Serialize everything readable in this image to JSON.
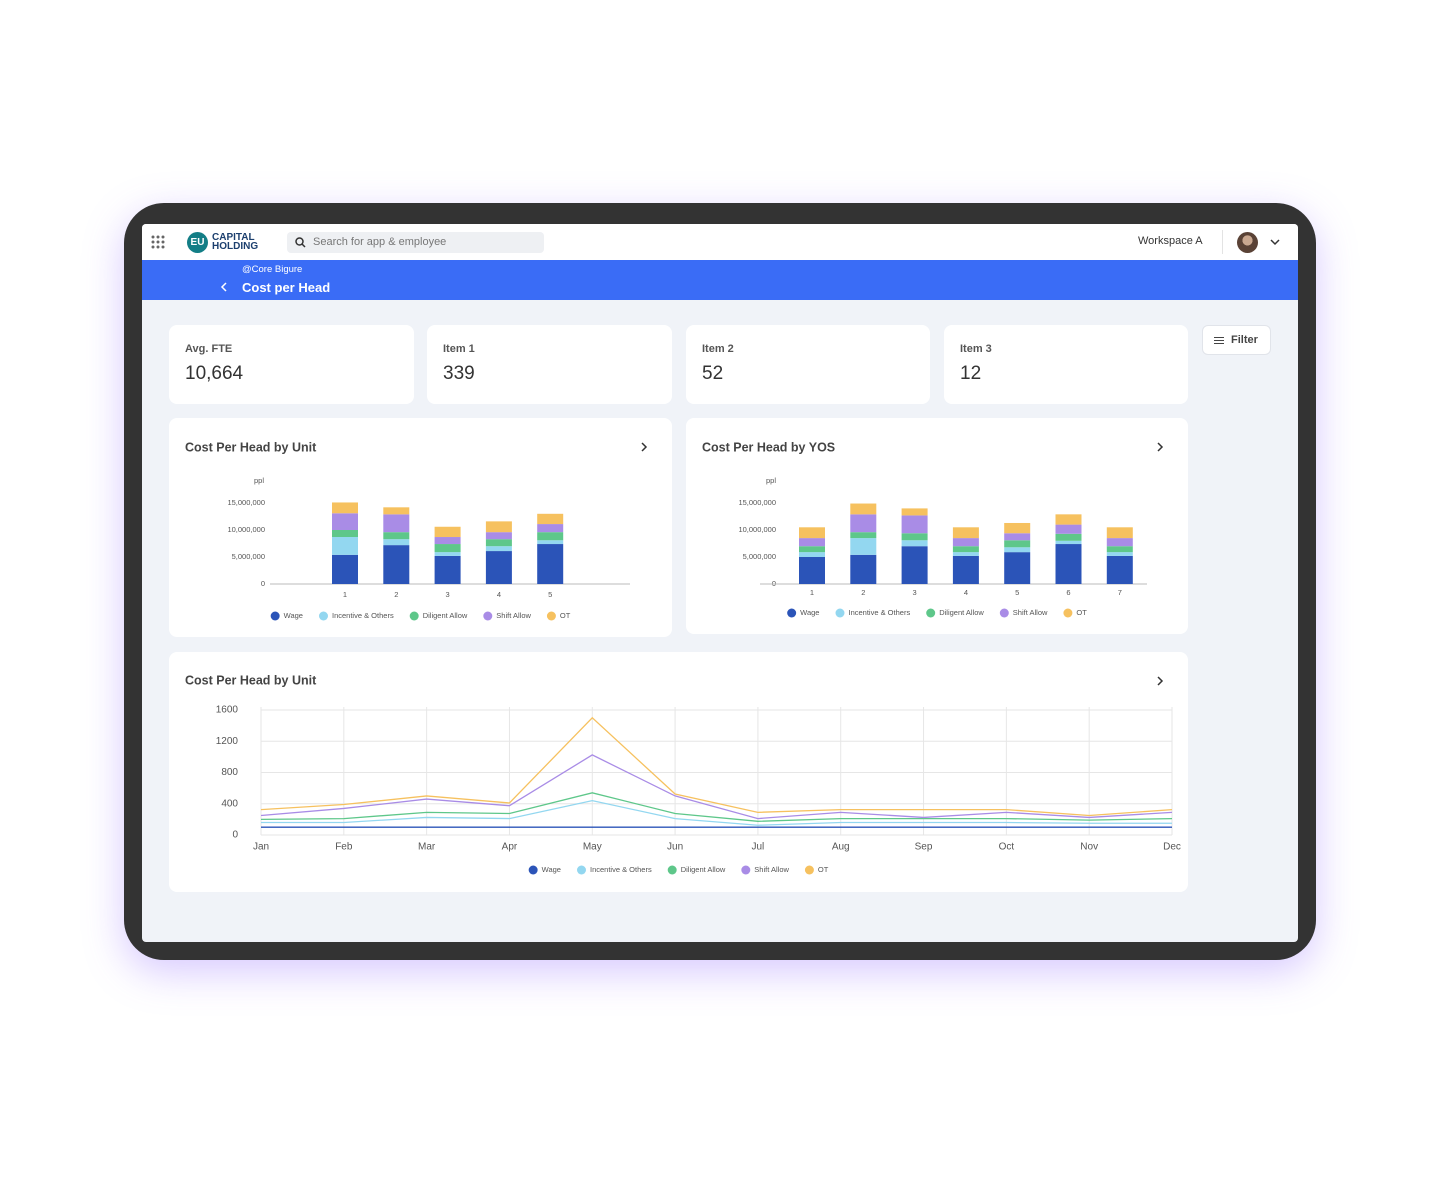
{
  "header": {
    "logo_badge": "EU",
    "logo_line1": "CAPITAL",
    "logo_line2": "HOLDING",
    "search_placeholder": "Search for app & employee",
    "workspace": "Workspace A"
  },
  "breadcrumb": {
    "parent": "@Core Bigure",
    "title": "Cost per Head"
  },
  "filter_button": "Filter",
  "kpis": [
    {
      "label": "Avg. FTE",
      "value": "10,664"
    },
    {
      "label": "Item 1",
      "value": "339"
    },
    {
      "label": "Item 2",
      "value": "52"
    },
    {
      "label": "Item 3",
      "value": "12"
    }
  ],
  "chart_data": [
    {
      "type": "bar",
      "stacked": true,
      "title": "Cost Per Head by Unit",
      "y_label": "ppl",
      "categories": [
        "1",
        "2",
        "3",
        "4",
        "5"
      ],
      "series": [
        {
          "name": "Wage",
          "color": "#2b54b8",
          "values": [
            5400000,
            7200000,
            5200000,
            6100000,
            7400000
          ]
        },
        {
          "name": "Incentive & Others",
          "color": "#93d7f0",
          "values": [
            3300000,
            1100000,
            700000,
            900000,
            700000
          ]
        },
        {
          "name": "Diligent Allow",
          "color": "#5ec78a",
          "values": [
            1300000,
            1300000,
            1500000,
            1300000,
            1500000
          ]
        },
        {
          "name": "Shift Allow",
          "color": "#a98ce6",
          "values": [
            3100000,
            3300000,
            1300000,
            1300000,
            1500000
          ]
        },
        {
          "name": "OT",
          "color": "#f6c15f",
          "values": [
            2000000,
            1300000,
            1900000,
            2000000,
            1900000
          ]
        }
      ],
      "ylim": [
        0,
        15000000
      ],
      "yticks": [
        0,
        {
          "value": 5000000,
          "label": "5,000,000"
        },
        {
          "value": 10000000,
          "label": "10,000,000"
        },
        {
          "value": 15000000,
          "label": "15,000,000"
        }
      ],
      "grid": false,
      "legend": "bottom"
    },
    {
      "type": "bar",
      "stacked": true,
      "title": "Cost Per Head by YOS",
      "y_label": "ppl",
      "categories": [
        "1",
        "2",
        "3",
        "4",
        "5",
        "6",
        "7"
      ],
      "series": [
        {
          "name": "Wage",
          "color": "#2b54b8",
          "values": [
            5000000,
            5400000,
            7000000,
            5200000,
            5900000,
            7400000,
            5200000
          ]
        },
        {
          "name": "Incentive & Others",
          "color": "#93d7f0",
          "values": [
            900000,
            3100000,
            1100000,
            700000,
            900000,
            600000,
            700000
          ]
        },
        {
          "name": "Diligent Allow",
          "color": "#5ec78a",
          "values": [
            1100000,
            1100000,
            1300000,
            1100000,
            1300000,
            1300000,
            1100000
          ]
        },
        {
          "name": "Shift Allow",
          "color": "#a98ce6",
          "values": [
            1500000,
            3300000,
            3300000,
            1500000,
            1300000,
            1700000,
            1500000
          ]
        },
        {
          "name": "OT",
          "color": "#f6c15f",
          "values": [
            2000000,
            2000000,
            1300000,
            2000000,
            1900000,
            1900000,
            2000000
          ]
        }
      ],
      "ylim": [
        0,
        15000000
      ],
      "yticks": [
        0,
        {
          "value": 5000000,
          "label": "5,000,000"
        },
        {
          "value": 10000000,
          "label": "10,000,000"
        },
        {
          "value": 15000000,
          "label": "15,000,000"
        }
      ],
      "grid": false,
      "legend": "bottom"
    },
    {
      "type": "line",
      "title": "Cost Per Head by Unit",
      "categories": [
        "Jan",
        "Feb",
        "Mar",
        "Apr",
        "May",
        "Jun",
        "Jul",
        "Aug",
        "Sep",
        "Oct",
        "Nov",
        "Dec"
      ],
      "series": [
        {
          "name": "Wage",
          "color": "#2b54b8",
          "values": [
            100,
            100,
            100,
            100,
            100,
            100,
            100,
            100,
            100,
            100,
            100,
            100
          ]
        },
        {
          "name": "Incentive & Others",
          "color": "#93d7f0",
          "values": [
            160,
            160,
            225,
            210,
            440,
            210,
            125,
            160,
            160,
            160,
            150,
            150
          ]
        },
        {
          "name": "Diligent Allow",
          "color": "#5ec78a",
          "values": [
            200,
            210,
            290,
            275,
            540,
            275,
            175,
            210,
            210,
            210,
            190,
            210
          ]
        },
        {
          "name": "Shift Allow",
          "color": "#a98ce6",
          "values": [
            250,
            340,
            460,
            375,
            1025,
            500,
            210,
            290,
            225,
            290,
            225,
            290
          ]
        },
        {
          "name": "OT",
          "color": "#f6c15f",
          "values": [
            325,
            390,
            500,
            410,
            1500,
            525,
            290,
            325,
            325,
            325,
            250,
            325
          ]
        }
      ],
      "ylim": [
        0,
        1600
      ],
      "yticks": [
        0,
        400,
        800,
        1200,
        1600
      ],
      "grid": true,
      "legend": "bottom"
    }
  ]
}
